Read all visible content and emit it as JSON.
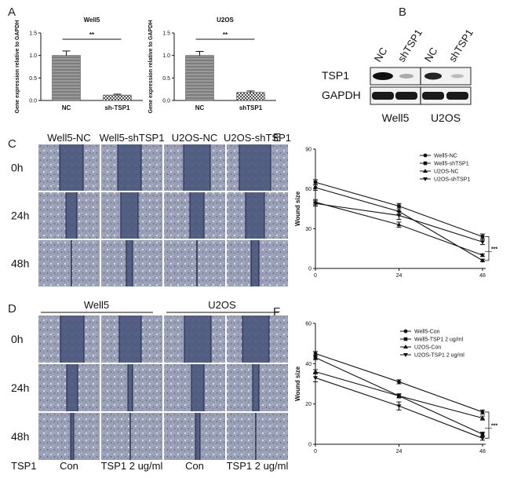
{
  "panels": [
    "A",
    "B",
    "C",
    "D",
    "E",
    "F"
  ],
  "colors": {
    "bar_gray": "#8a8a8a",
    "bar_light": "#cfcfcf",
    "micro_bg": "#8f97ad",
    "wound": "#3f4a70",
    "line": "#111111"
  },
  "chart_data": [
    {
      "type": "bar",
      "title": "Well5",
      "ylabel": "Gene expression relative to GAPDH",
      "categories": [
        "NC",
        "sh-TSP1"
      ],
      "values": [
        1.0,
        0.12
      ],
      "errors": [
        0.1,
        0.02
      ],
      "ylim": [
        0,
        1.5
      ],
      "yticks": [
        "0.0",
        "0.5",
        "1.0",
        "1.5"
      ],
      "significance": "**"
    },
    {
      "type": "bar",
      "title": "U2OS",
      "ylabel": "Gene expression relative to GAPDH",
      "categories": [
        "NC",
        "shTSP1"
      ],
      "values": [
        1.0,
        0.18
      ],
      "errors": [
        0.09,
        0.03
      ],
      "ylim": [
        0,
        1.5
      ],
      "yticks": [
        "0.0",
        "0.5",
        "1.0",
        "1.5"
      ],
      "significance": "**"
    },
    {
      "type": "line",
      "ylabel": "Wound size",
      "x": [
        0,
        24,
        48
      ],
      "xticks": [
        "0",
        "24",
        "48"
      ],
      "ylim": [
        0,
        90
      ],
      "yticks": [
        "0",
        "30",
        "60",
        "90"
      ],
      "legend_position": "top-right",
      "significance": "***",
      "series": [
        {
          "name": "Well5-NC",
          "values": [
            61,
            43,
            6
          ],
          "errors": [
            2,
            2,
            1
          ]
        },
        {
          "name": "Well5-shTSP1",
          "values": [
            65,
            47,
            24
          ],
          "errors": [
            2,
            2,
            2
          ]
        },
        {
          "name": "U2OS-NC",
          "values": [
            50,
            33,
            10
          ],
          "errors": [
            2,
            2,
            1
          ]
        },
        {
          "name": "U2OS-shTSP1",
          "values": [
            49,
            40,
            20
          ],
          "errors": [
            2,
            3,
            2
          ]
        }
      ]
    },
    {
      "type": "line",
      "ylabel": "Wound size",
      "x": [
        0,
        24,
        48
      ],
      "xticks": [
        "0",
        "24",
        "48"
      ],
      "ylim": [
        0,
        60
      ],
      "yticks": [
        "0",
        "20",
        "40",
        "60"
      ],
      "legend_position": "top-right",
      "significance": "***",
      "series": [
        {
          "name": "Well5-Con",
          "values": [
            45,
            31,
            16
          ],
          "errors": [
            1,
            1,
            1
          ]
        },
        {
          "name": "Well5-TSP1 2 ug/ml",
          "values": [
            43,
            24,
            5
          ],
          "errors": [
            1,
            1,
            1
          ]
        },
        {
          "name": "U2OS-Con",
          "values": [
            36,
            24,
            13
          ],
          "errors": [
            1,
            1,
            1
          ]
        },
        {
          "name": "U2OS-TSP1 2 ug/ml",
          "values": [
            33,
            19,
            3
          ],
          "errors": [
            2,
            2,
            1
          ]
        }
      ]
    }
  ],
  "blot": {
    "lanes": [
      "NC",
      "shTSP1",
      "NC",
      "shTSP1"
    ],
    "rows": [
      "TSP1",
      "GAPDH"
    ],
    "cells": [
      "Well5",
      "U2OS"
    ]
  },
  "panelC": {
    "columns": [
      "Well5-NC",
      "Well5-shTSP1",
      "U2OS-NC",
      "U2OS-shTSP1"
    ],
    "rows": [
      "0h",
      "24h",
      "48h"
    ]
  },
  "panelD": {
    "groups": [
      "Well5",
      "U2OS"
    ],
    "rows": [
      "0h",
      "24h",
      "48h"
    ],
    "treatment_label": "TSP1",
    "columns": [
      "Con",
      "TSP1 2 ug/ml",
      "Con",
      "TSP1 2 ug/ml"
    ]
  }
}
